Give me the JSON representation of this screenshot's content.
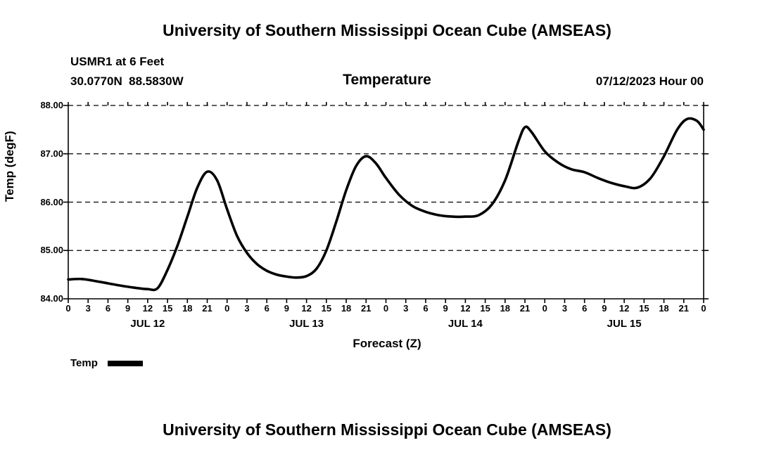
{
  "page": {
    "top_title": "University of Southern Mississippi Ocean Cube (AMSEAS)",
    "bottom_title": "University of Southern Mississippi Ocean Cube (AMSEAS)"
  },
  "chart_header": {
    "station": "USMR1 at 6 Feet",
    "coordinates": "30.0770N  88.5830W",
    "variable_title": "Temperature",
    "run_time": "07/12/2023 Hour 00"
  },
  "chart_data": {
    "type": "line",
    "title": "Temperature",
    "xlabel": "Forecast (Z)",
    "ylabel": "Temp (degF)",
    "ylim": [
      84.0,
      88.0
    ],
    "xlim_hours": [
      0,
      96
    ],
    "grid": "dashed-horizontal",
    "line_color": "#000000",
    "y_tick_labels": [
      "88.00",
      "87.00",
      "86.00",
      "85.00",
      "84.00"
    ],
    "y_tick_values": [
      88,
      87,
      86,
      85,
      84
    ],
    "y_grid_values": [
      85,
      86,
      87,
      88
    ],
    "x_tick_interval_hours": 3,
    "x_hour_labels": [
      "0",
      "3",
      "6",
      "9",
      "12",
      "15",
      "18",
      "21"
    ],
    "day_labels": [
      {
        "label": "JUL 12",
        "center_hour": 12
      },
      {
        "label": "JUL 13",
        "center_hour": 36
      },
      {
        "label": "JUL 14",
        "center_hour": 60
      },
      {
        "label": "JUL 15",
        "center_hour": 84
      }
    ],
    "legend": [
      {
        "label": "Temp",
        "color": "#000000"
      }
    ],
    "series": [
      {
        "name": "Temp",
        "x": [
          0,
          2,
          4,
          6,
          8,
          10,
          12,
          13.5,
          15,
          16.5,
          18,
          19.5,
          21,
          22.5,
          24,
          25.5,
          27,
          28.5,
          30,
          31.5,
          33,
          34.5,
          36,
          37.5,
          39,
          40.5,
          42,
          43.5,
          45,
          46.5,
          48,
          50,
          52,
          54,
          56,
          58,
          60,
          62,
          64,
          66,
          68,
          69,
          70,
          72,
          74,
          76,
          78,
          80,
          82,
          84,
          86,
          88,
          90,
          92,
          93.5,
          95,
          96
        ],
        "values": [
          84.4,
          84.41,
          84.37,
          84.32,
          84.27,
          84.23,
          84.2,
          84.22,
          84.6,
          85.1,
          85.7,
          86.3,
          86.63,
          86.45,
          85.85,
          85.3,
          84.95,
          84.72,
          84.58,
          84.5,
          84.46,
          84.44,
          84.47,
          84.62,
          85.0,
          85.6,
          86.25,
          86.75,
          86.95,
          86.8,
          86.5,
          86.15,
          85.92,
          85.8,
          85.73,
          85.7,
          85.7,
          85.73,
          85.95,
          86.45,
          87.25,
          87.55,
          87.45,
          87.05,
          86.82,
          86.68,
          86.62,
          86.5,
          86.4,
          86.33,
          86.3,
          86.5,
          86.95,
          87.5,
          87.72,
          87.68,
          87.5
        ]
      }
    ]
  }
}
